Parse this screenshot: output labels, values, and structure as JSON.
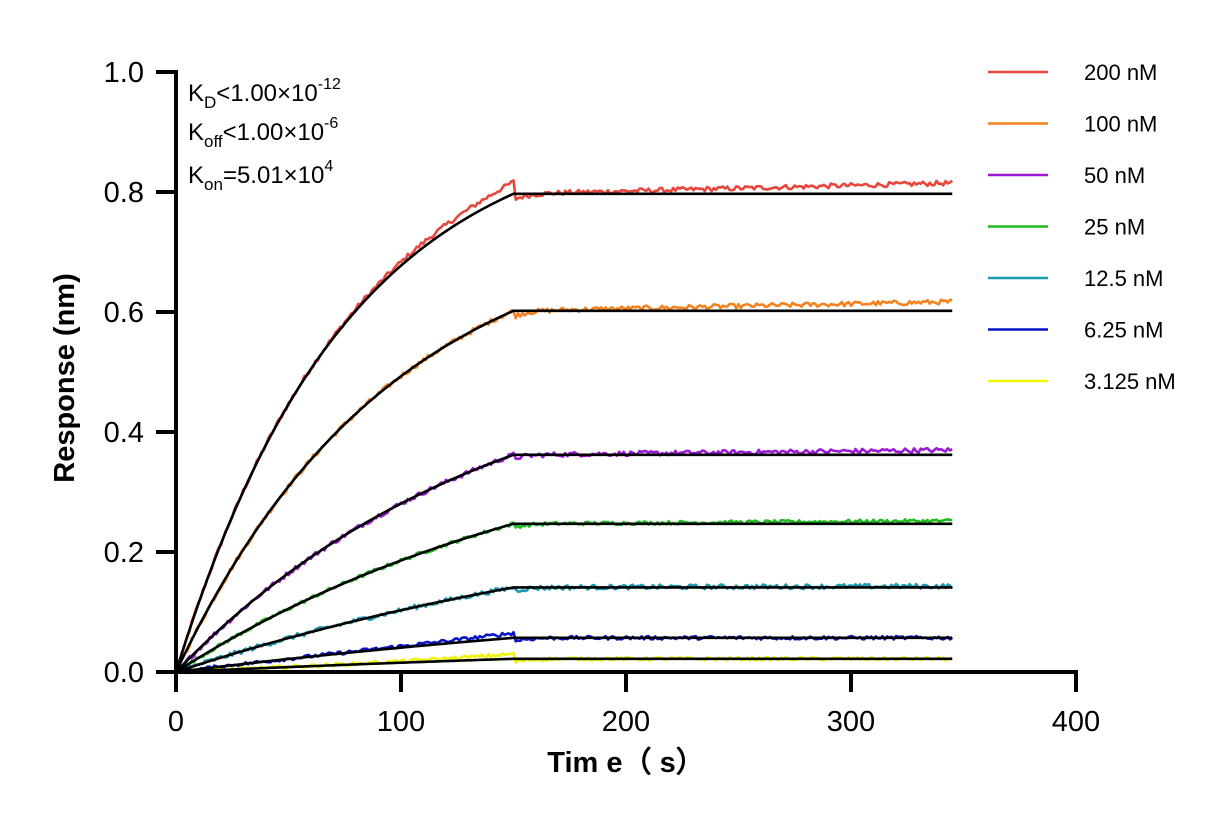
{
  "chart_data": {
    "type": "line",
    "xlabel": "Tim e（ s）",
    "ylabel": "Response (nm)",
    "xlim": [
      0,
      400
    ],
    "ylim": [
      0,
      1.0
    ],
    "x_ticks": [
      "0",
      "100",
      "200",
      "300",
      "400"
    ],
    "y_ticks": [
      "0.0",
      "0.2",
      "0.4",
      "0.6",
      "0.8",
      "1.0"
    ],
    "legend_position": "top-right",
    "grid": false,
    "annotations": {
      "kd": {
        "prefix": "K",
        "sub": "D",
        "rel": "<1.00×10",
        "sup": "-12"
      },
      "koff": {
        "prefix": "K",
        "sub": "off",
        "rel": "<1.00×10",
        "sup": "-6"
      },
      "kon": {
        "prefix": "K",
        "sub": "on",
        "rel": "=5.01×10",
        "sup": "4"
      }
    },
    "association_end_s": 150,
    "end_s": 345,
    "fit_color": "#000000",
    "series": [
      {
        "name": "200 nM",
        "color": "#e8463c",
        "plateau": 0.797,
        "final": 0.815,
        "noise": 0.004,
        "overshoot": 0.02
      },
      {
        "name": "100 nM",
        "color": "#f5821f",
        "plateau": 0.602,
        "final": 0.617,
        "noise": 0.004,
        "overshoot": 0.0
      },
      {
        "name": "50 nM",
        "color": "#9b19d6",
        "plateau": 0.362,
        "final": 0.37,
        "noise": 0.004,
        "overshoot": 0.0
      },
      {
        "name": "25 nM",
        "color": "#1fbd1f",
        "plateau": 0.247,
        "final": 0.252,
        "noise": 0.003,
        "overshoot": 0.0
      },
      {
        "name": "12.5 nM",
        "color": "#1e9ab0",
        "plateau": 0.141,
        "final": 0.143,
        "noise": 0.004,
        "overshoot": 0.0
      },
      {
        "name": "6.25 nM",
        "color": "#0a14c8",
        "plateau": 0.057,
        "final": 0.057,
        "noise": 0.003,
        "overshoot": 0.008
      },
      {
        "name": "3.125 nM",
        "color": "#f2f20a",
        "plateau": 0.022,
        "final": 0.022,
        "noise": 0.003,
        "overshoot": 0.008
      }
    ]
  }
}
